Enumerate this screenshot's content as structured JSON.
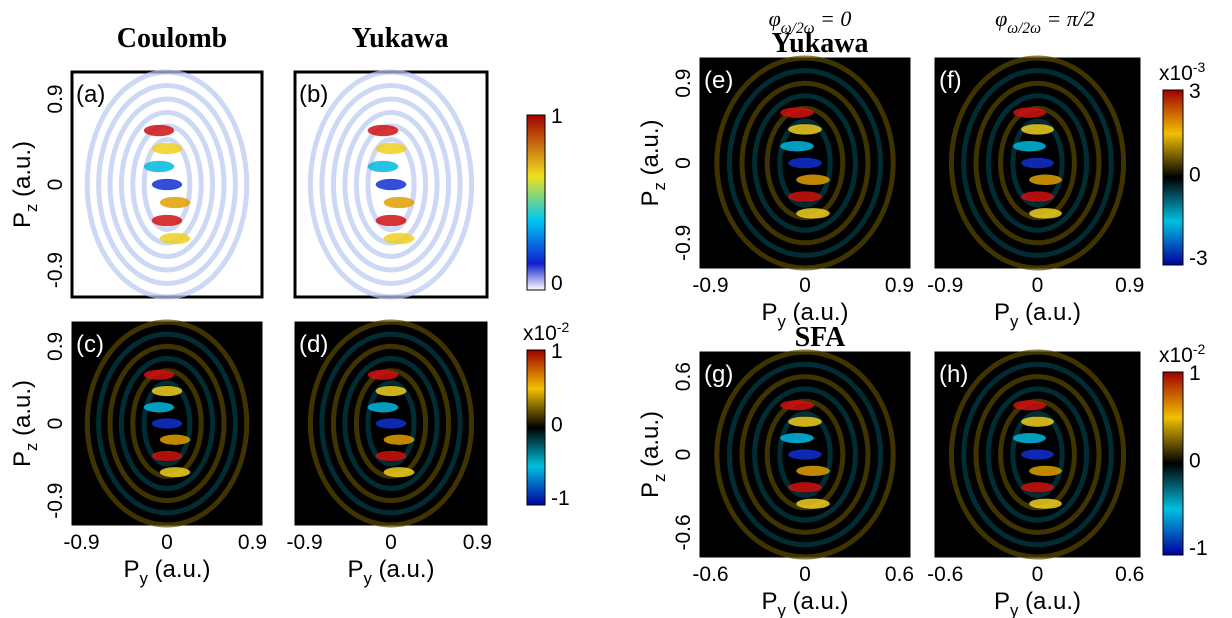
{
  "left_titles": [
    "Coulomb",
    "Yukawa"
  ],
  "phase_labels": [
    {
      "symbol": "φ",
      "sub": "ω/2ω",
      "rest": " = 0"
    },
    {
      "symbol": "φ",
      "sub": "ω/2ω",
      "rest": " = π/2"
    }
  ],
  "row_titles": [
    "Yukawa",
    "SFA"
  ],
  "axis_label_y": {
    "base": "P",
    "sub": "z",
    "unit": " (a.u.)"
  },
  "axis_label_x": {
    "base": "P",
    "sub": "y",
    "unit": " (a.u.)"
  },
  "panels": [
    {
      "label": "(a)",
      "yticks": [
        "0.9",
        "0",
        "-0.9"
      ]
    },
    {
      "label": "(b)"
    },
    {
      "label": "(c)",
      "yticks": [
        "0.9",
        "0",
        "-0.9"
      ],
      "xticks": [
        "-0.9",
        "0",
        "0.9"
      ]
    },
    {
      "label": "(d)",
      "xticks": [
        "-0.9",
        "0",
        "0.9"
      ]
    },
    {
      "label": "(e)",
      "yticks": [
        "0.9",
        "0",
        "-0.9"
      ],
      "xticks": [
        "-0.9",
        "0",
        "0.9"
      ]
    },
    {
      "label": "(f)",
      "xticks": [
        "-0.9",
        "0",
        "0.9"
      ]
    },
    {
      "label": "(g)",
      "yticks": [
        "0.6",
        "0",
        "-0.6"
      ],
      "xticks": [
        "-0.6",
        "0",
        "0.6"
      ]
    },
    {
      "label": "(h)",
      "xticks": [
        "-0.6",
        "0",
        "0.6"
      ]
    }
  ],
  "colorbars": [
    {
      "ticks": [
        "1",
        "0"
      ]
    },
    {
      "scale": "x10",
      "exp": "-2",
      "ticks": [
        "1",
        "0",
        "-1"
      ]
    },
    {
      "scale": "x10",
      "exp": "-3",
      "ticks": [
        "3",
        "0",
        "-3"
      ]
    },
    {
      "scale": "x10",
      "exp": "-2",
      "ticks": [
        "1",
        "0",
        "-1"
      ]
    }
  ]
}
